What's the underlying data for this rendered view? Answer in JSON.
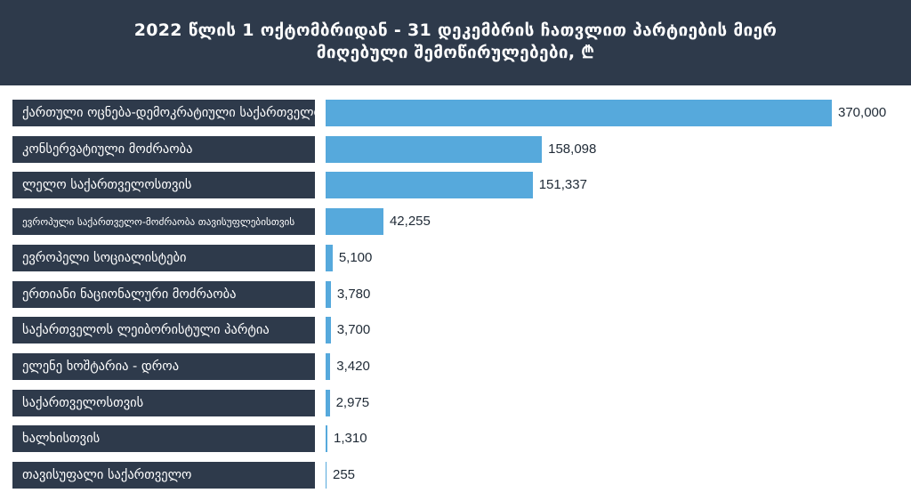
{
  "header": {
    "title_line1": "2022 წლის 1 ოქტომბრიდან - 31 დეკემბრის ჩათვლით პარტიების მიერ",
    "title_line2": "მიღებული შემოწირულებები, ₾"
  },
  "colors": {
    "header_bg": "#2e3a4b",
    "label_bg": "#2e3a4b",
    "bar": "#56a9dc",
    "value_text": "#1f2a36"
  },
  "chart_data": {
    "type": "bar",
    "orientation": "horizontal",
    "title": "2022 წლის 1 ოქტომბრიდან - 31 დეკემბრის ჩათვლით პარტიების მიერ მიღებული შემოწირულებები, ₾",
    "xlabel": "",
    "ylabel": "",
    "xlim": [
      0,
      370000
    ],
    "grid": false,
    "categories": [
      "ქართული ოცნება-დემოკრატიული საქართველო",
      "კონსერვატიული მოძრაობა",
      "ლელო საქართველოსთვის",
      "ევროპული საქართველო-მოძრაობა თავისუფლებისთვის",
      "ევროპელი სოციალისტები",
      "ერთიანი ნაციონალური მოძრაობა",
      "საქართველოს ლეიბორისტული პარტია",
      "ელენე ხოშტარია - დროა",
      "საქართველოსთვის",
      "ხალხისთვის",
      "თავისუფალი საქართველო"
    ],
    "values": [
      370000,
      158098,
      151337,
      42255,
      5100,
      3780,
      3700,
      3420,
      2975,
      1310,
      255
    ],
    "value_labels": [
      "370,000",
      "158,098",
      "151,337",
      "42,255",
      "5,100",
      "3,780",
      "3,700",
      "3,420",
      "2,975",
      "1,310",
      "255"
    ]
  }
}
